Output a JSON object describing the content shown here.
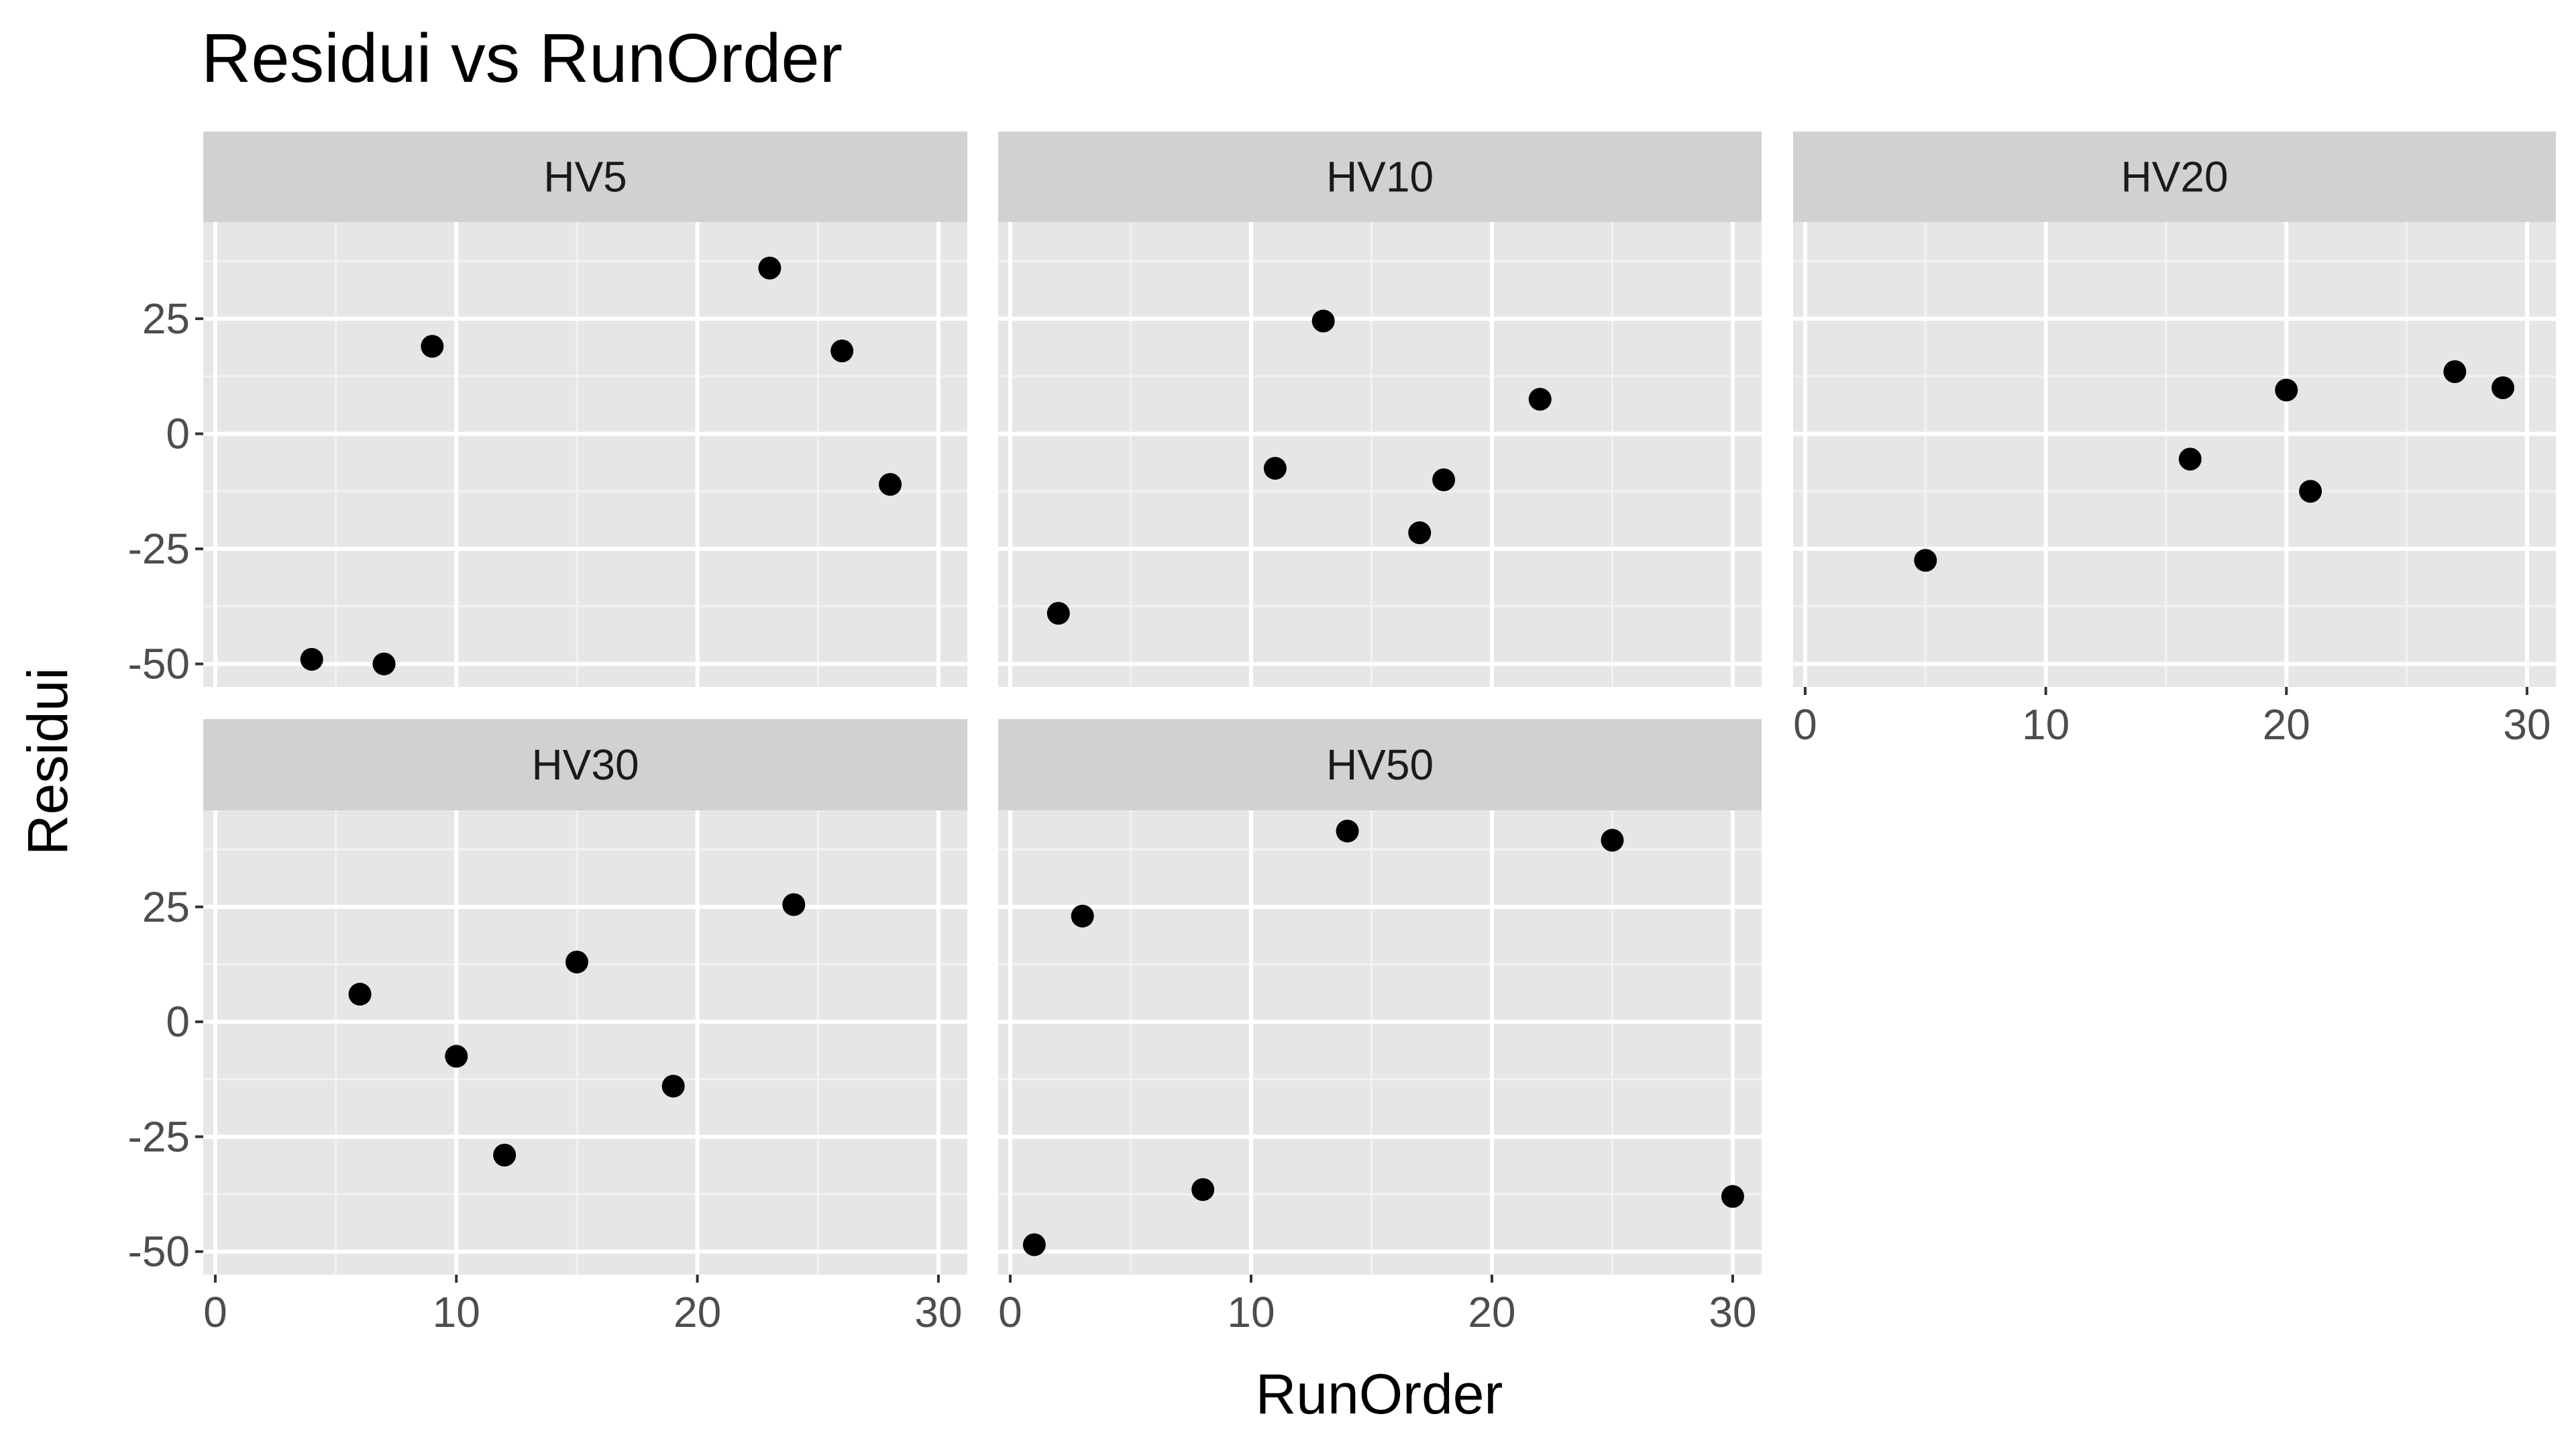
{
  "chart_data": {
    "type": "scatter",
    "title": "Residui vs RunOrder",
    "xlabel": "RunOrder",
    "ylabel": "Residui",
    "xlim": [
      -0.5,
      31.2
    ],
    "ylim": [
      -55,
      46
    ],
    "x_ticks": [
      0,
      10,
      20,
      30
    ],
    "y_ticks": [
      -50,
      -25,
      0,
      25
    ],
    "grid": true,
    "legend": "none",
    "colors": {
      "panel_background": "#e6e6e6",
      "strip_background": "#d1d1d1",
      "grid_major": "#ffffff",
      "grid_minor": "#f2f2f2",
      "point": "#000000",
      "tick_text": "#4d4d4d"
    },
    "facets": [
      {
        "label": "HV5",
        "x": [
          4,
          7,
          9,
          23,
          26,
          28
        ],
        "y": [
          -49,
          -50,
          19,
          36,
          18,
          -11
        ]
      },
      {
        "label": "HV10",
        "x": [
          2,
          11,
          13,
          17,
          18,
          22
        ],
        "y": [
          -39,
          -7.5,
          24.5,
          -21.5,
          -10,
          7.5
        ]
      },
      {
        "label": "HV20",
        "x": [
          5,
          16,
          20,
          21,
          27,
          29
        ],
        "y": [
          -27.5,
          -5.5,
          9.5,
          -12.5,
          13.5,
          10
        ]
      },
      {
        "label": "HV30",
        "x": [
          6,
          10,
          12,
          15,
          19,
          24
        ],
        "y": [
          6,
          -7.5,
          -29,
          13,
          -14,
          25.5
        ]
      },
      {
        "label": "HV50",
        "x": [
          1,
          3,
          8,
          14,
          25,
          30
        ],
        "y": [
          -48.5,
          23,
          -36.5,
          41.5,
          39.5,
          -38
        ]
      }
    ]
  }
}
